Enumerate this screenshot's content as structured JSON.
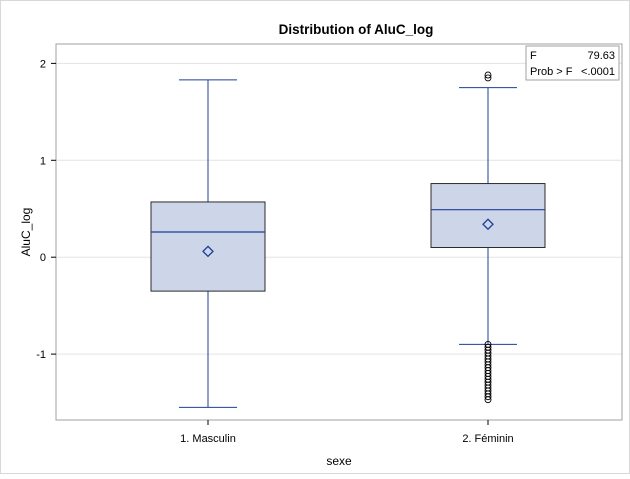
{
  "chart_data": {
    "type": "box",
    "title": "Distribution of AluC_log",
    "xlabel": "sexe",
    "ylabel": "AluC_log",
    "ylim": [
      -1.68,
      2.2
    ],
    "yticks": [
      -1,
      0,
      1,
      2
    ],
    "grid": true,
    "categories": [
      "1. Masculin",
      "2. Féminin"
    ],
    "boxes": [
      {
        "category": "1. Masculin",
        "min": -1.55,
        "q1": -0.35,
        "median": 0.26,
        "q3": 0.57,
        "max": 1.83,
        "mean": 0.06,
        "outliers": []
      },
      {
        "category": "2. Féminin",
        "min": -0.9,
        "q1": 0.1,
        "median": 0.49,
        "q3": 0.76,
        "max": 1.75,
        "mean": 0.34,
        "outliers": [
          1.88,
          1.85,
          -0.9,
          -0.93,
          -0.96,
          -0.99,
          -1.02,
          -1.05,
          -1.08,
          -1.11,
          -1.14,
          -1.17,
          -1.2,
          -1.23,
          -1.26,
          -1.29,
          -1.32,
          -1.35,
          -1.38,
          -1.41,
          -1.44,
          -1.47
        ]
      }
    ],
    "stats_table": [
      {
        "label": "F",
        "value": "79.63"
      },
      {
        "label": "Prob > F",
        "value": "<.0001"
      }
    ],
    "colors": {
      "box_fill": "#ccd6e8",
      "line": "#1f3f99",
      "grid": "#e3e3e3",
      "frame": "#a0a0a0"
    }
  }
}
